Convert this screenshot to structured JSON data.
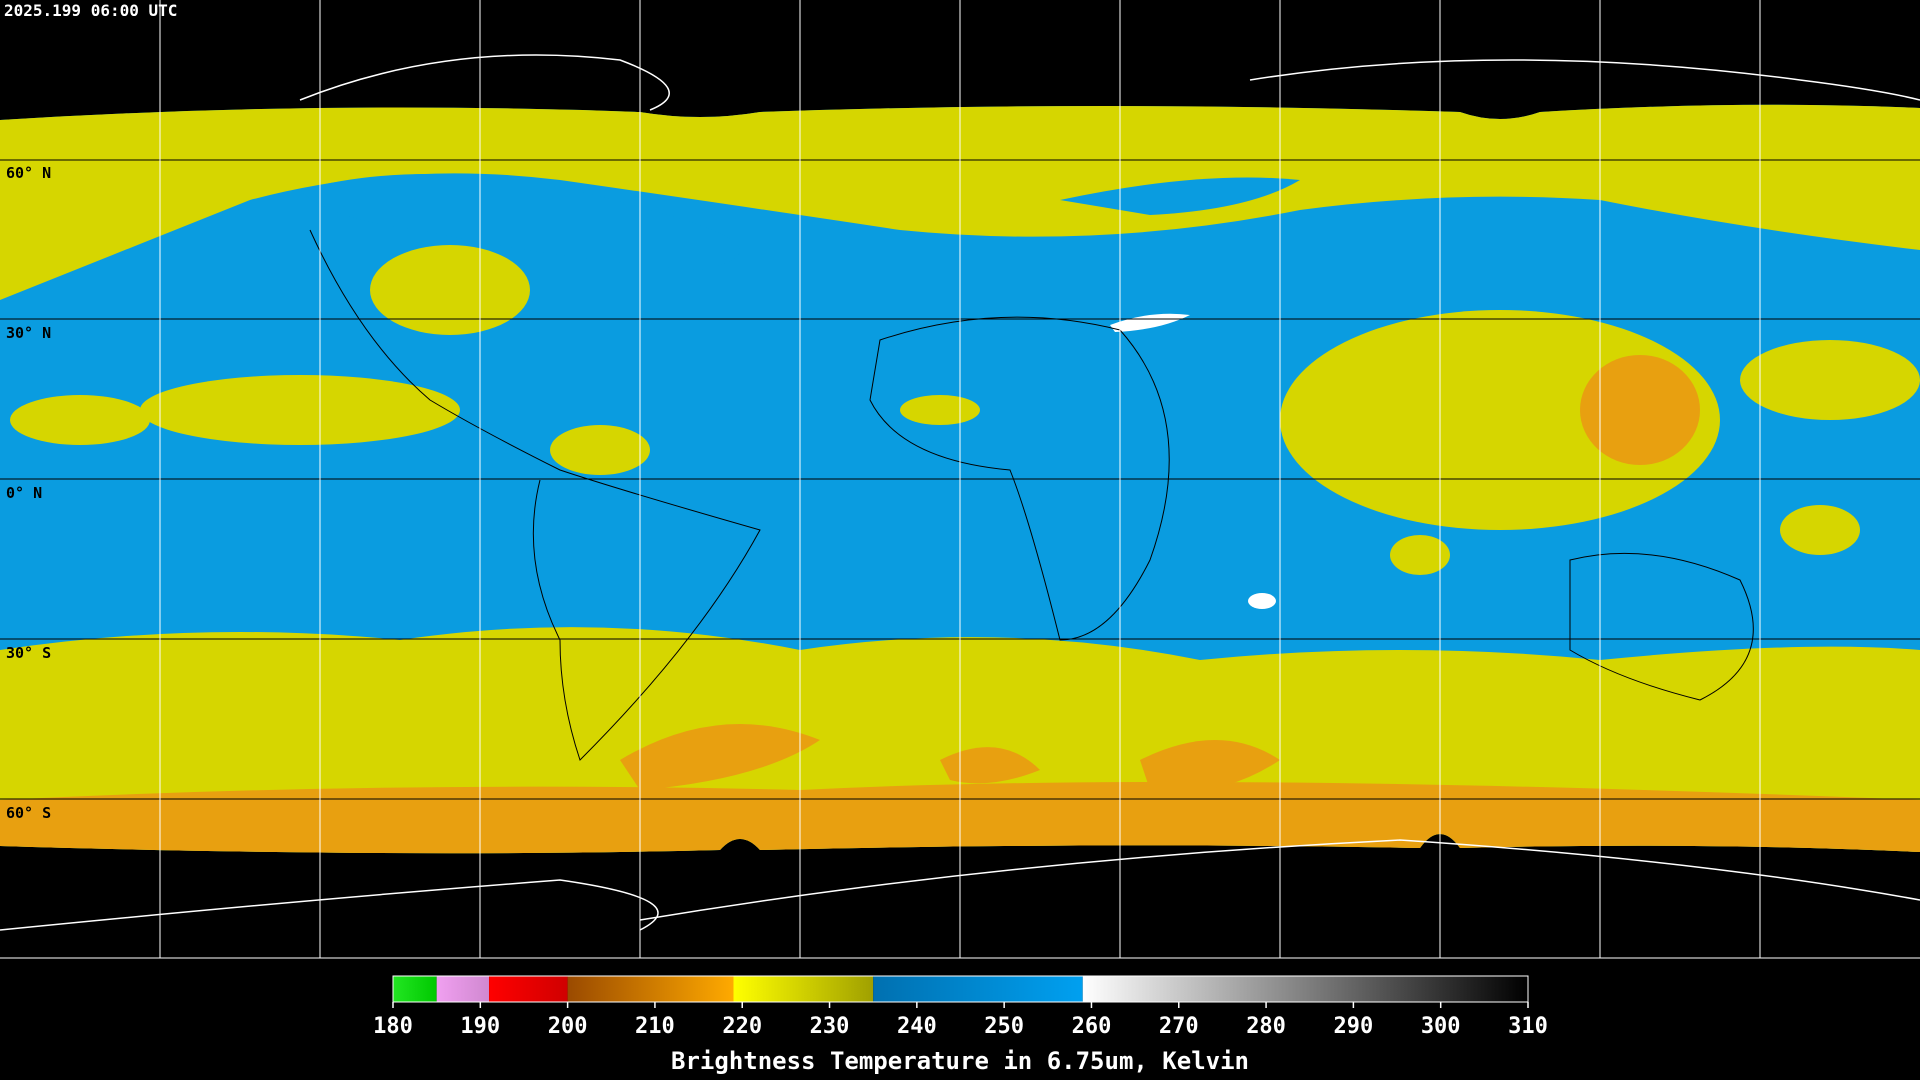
{
  "header": {
    "timestamp": "2025.199 06:00 UTC"
  },
  "map": {
    "lat_labels": [
      "60° N",
      "30° N",
      "0° N",
      "30° S",
      "60° S"
    ]
  },
  "colorbar": {
    "title": "Brightness Temperature in 6.75um, Kelvin",
    "range": [
      180,
      310
    ],
    "ticks": [
      180,
      190,
      200,
      210,
      220,
      230,
      240,
      250,
      260,
      270,
      280,
      290,
      300,
      310
    ],
    "segments": [
      {
        "from": 180,
        "to": 185,
        "colors": [
          "#22e622",
          "#00c800"
        ]
      },
      {
        "from": 185,
        "to": 191,
        "colors": [
          "#f0a0f0",
          "#d088d0"
        ]
      },
      {
        "from": 191,
        "to": 200,
        "colors": [
          "#ff0000",
          "#d00000"
        ]
      },
      {
        "from": 200,
        "to": 219,
        "colors": [
          "#9a4a00",
          "#ffaa00"
        ]
      },
      {
        "from": 219,
        "to": 235,
        "colors": [
          "#ffff00",
          "#a0a000"
        ]
      },
      {
        "from": 235,
        "to": 259,
        "colors": [
          "#0070b0",
          "#00a0f0"
        ]
      },
      {
        "from": 259,
        "to": 310,
        "colors": [
          "#ffffff",
          "#000000"
        ]
      }
    ]
  }
}
